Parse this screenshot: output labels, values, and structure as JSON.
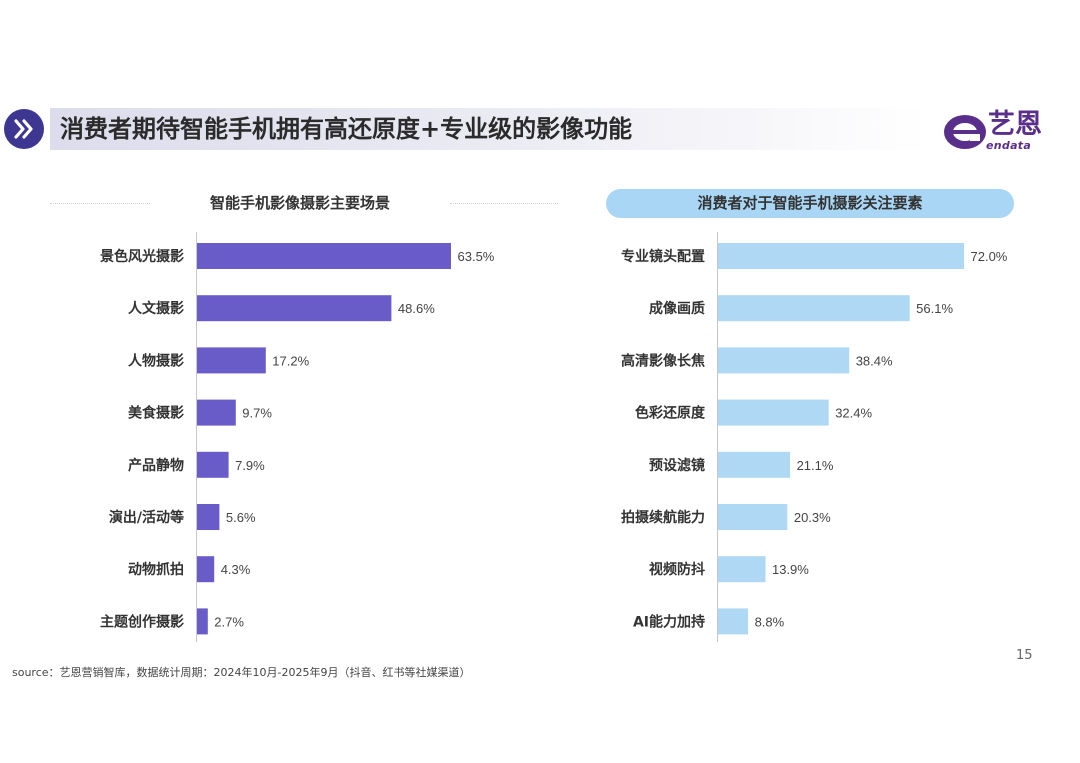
{
  "header": {
    "title": "消费者期待智能手机拥有高还原度+专业级的影像功能",
    "logo_text": "艺恩",
    "logo_sub": "endata"
  },
  "footer": {
    "source": "source：艺恩营销智库，数据统计周期：2024年10月-2025年9月（抖音、红书等社媒渠道）",
    "page_number": "15"
  },
  "colors": {
    "left_bar": "#6a5cc8",
    "right_bar": "#afd8f5",
    "title_icon": "#3e3791",
    "logo": "#5a2f8c"
  },
  "chart_data": [
    {
      "type": "bar",
      "orientation": "horizontal",
      "title": "智能手机影像摄影主要场景",
      "categories": [
        "景色风光摄影",
        "人文摄影",
        "人物摄影",
        "美食摄影",
        "产品静物",
        "演出/活动等",
        "动物抓拍",
        "主题创作摄影"
      ],
      "values": [
        63.5,
        48.6,
        17.2,
        9.7,
        7.9,
        5.6,
        4.3,
        2.7
      ],
      "labels": [
        "63.5%",
        "48.6%",
        "17.2%",
        "9.7%",
        "7.9%",
        "5.6%",
        "4.3%",
        "2.7%"
      ],
      "unit": "%",
      "xlim": [
        0,
        63.5
      ]
    },
    {
      "type": "bar",
      "orientation": "horizontal",
      "title": "消费者对于智能手机摄影关注要素",
      "categories": [
        "专业镜头配置",
        "成像画质",
        "高清影像长焦",
        "色彩还原度",
        "预设滤镜",
        "拍摄续航能力",
        "视频防抖",
        "AI能力加持"
      ],
      "values": [
        72.0,
        56.1,
        38.4,
        32.4,
        21.1,
        20.3,
        13.9,
        8.8
      ],
      "labels": [
        "72.0%",
        "56.1%",
        "38.4%",
        "32.4%",
        "21.1%",
        "20.3%",
        "13.9%",
        "8.8%"
      ],
      "unit": "%",
      "xlim": [
        0,
        72.0
      ]
    }
  ]
}
